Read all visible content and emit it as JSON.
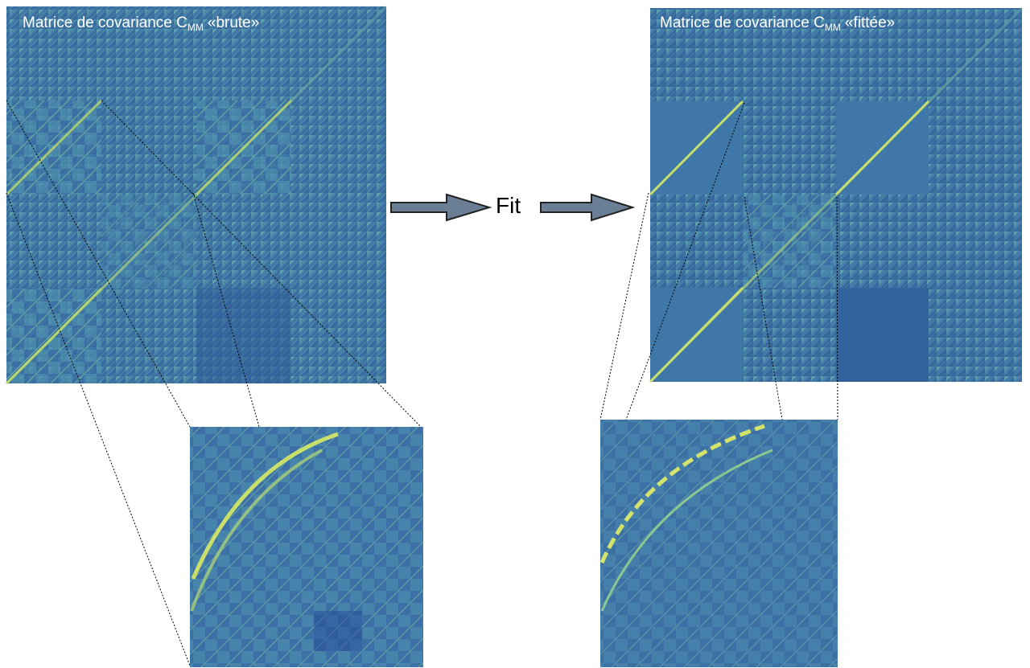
{
  "panels": [
    {
      "title": "Matrice de covariance C",
      "subscript": "MM",
      "qualifier": "«brute»"
    },
    {
      "title": "Matrice de covariance C",
      "subscript": "MM",
      "qualifier": "«fittée»"
    }
  ],
  "arrow_label": "Fit"
}
